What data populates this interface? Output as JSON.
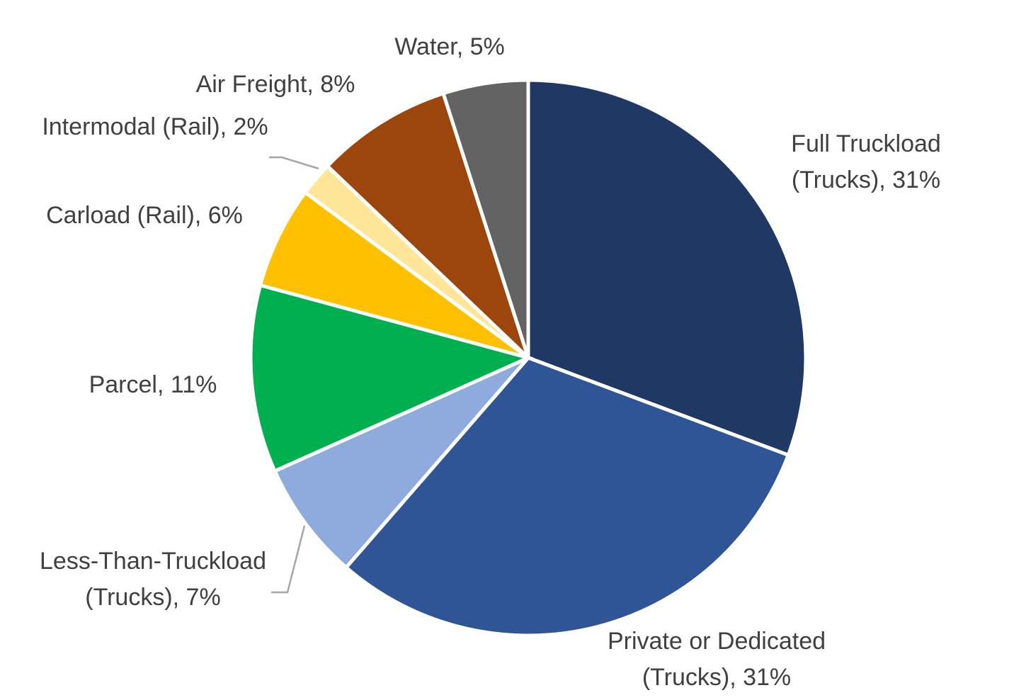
{
  "chart_data": {
    "type": "pie",
    "title": "",
    "slices": [
      {
        "name": "Full Truckload (Trucks)",
        "value": 31,
        "label_lines": [
          "Full Truckload",
          "(Trucks), 31%"
        ],
        "color": "#203864"
      },
      {
        "name": "Private or Dedicated (Trucks)",
        "value": 31,
        "label_lines": [
          "Private or Dedicated",
          "(Trucks), 31%"
        ],
        "color": "#2f5597"
      },
      {
        "name": "Less-Than-Truckload (Trucks)",
        "value": 7,
        "label_lines": [
          "Less-Than-Truckload",
          "(Trucks), 7%"
        ],
        "color": "#8faadc"
      },
      {
        "name": "Parcel",
        "value": 11,
        "label_lines": [
          "Parcel, 11%"
        ],
        "color": "#00b050"
      },
      {
        "name": "Carload (Rail)",
        "value": 6,
        "label_lines": [
          "Carload (Rail), 6%"
        ],
        "color": "#ffc000"
      },
      {
        "name": "Intermodal (Rail)",
        "value": 2,
        "label_lines": [
          "Intermodal (Rail), 2%"
        ],
        "color": "#ffe699"
      },
      {
        "name": "Air Freight",
        "value": 8,
        "label_lines": [
          "Air Freight, 8%"
        ],
        "color": "#9c450c"
      },
      {
        "name": "Water",
        "value": 5,
        "label_lines": [
          "Water, 5%"
        ],
        "color": "#636363"
      }
    ],
    "start_angle": "12 o'clock",
    "direction": "clockwise",
    "legend": "none"
  }
}
